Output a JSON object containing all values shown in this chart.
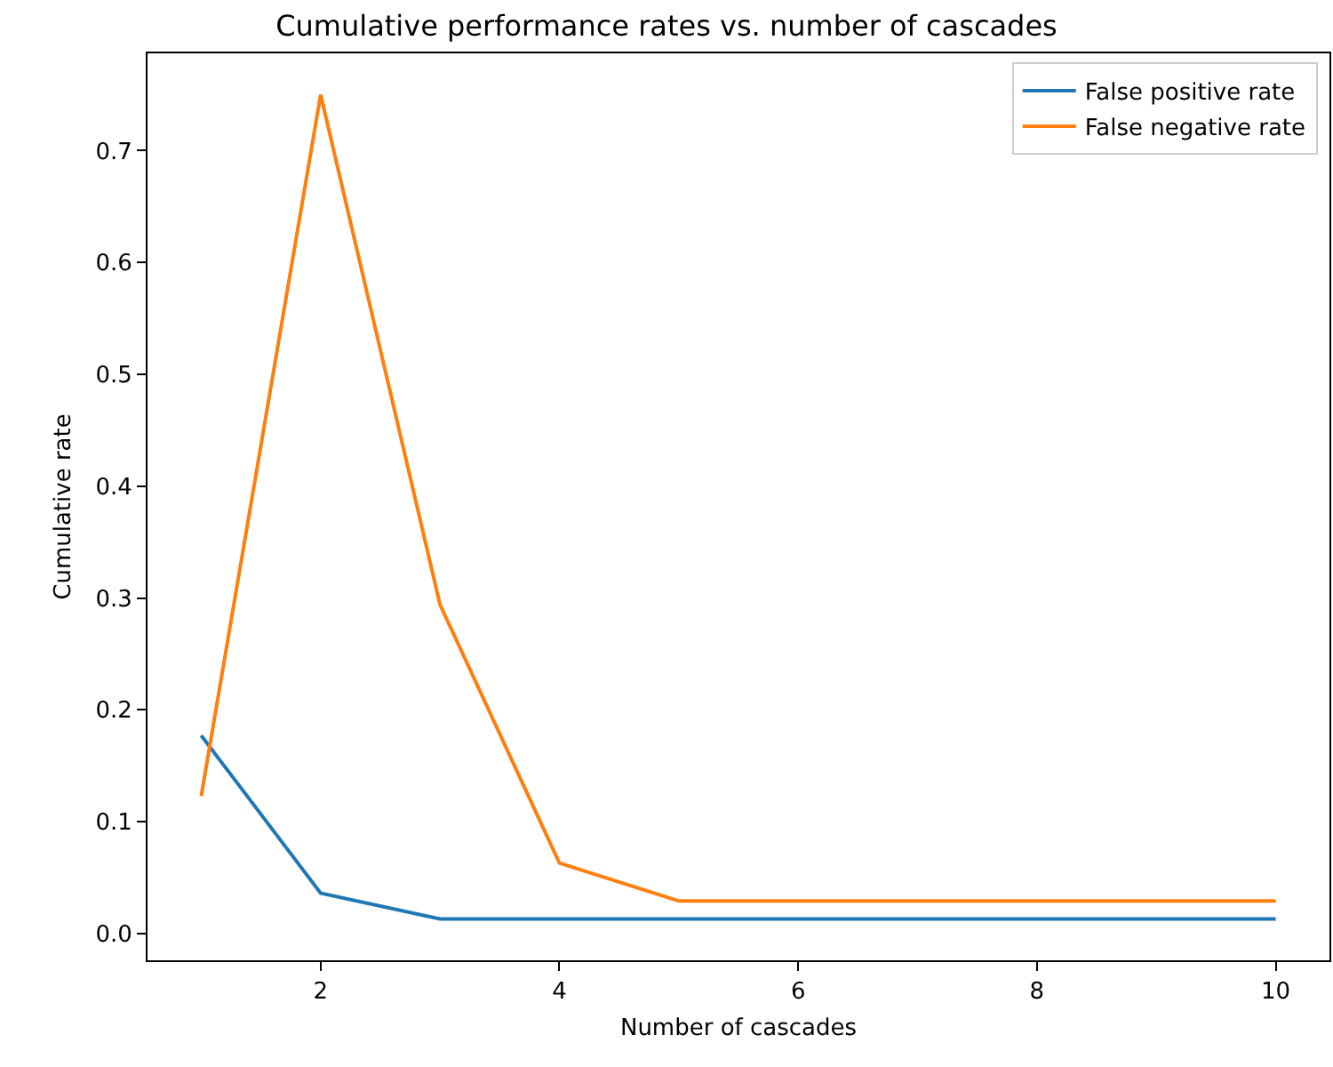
{
  "chart_data": {
    "type": "line",
    "title": "Cumulative performance rates vs. number of cascades",
    "xlabel": "Number of cascades",
    "ylabel": "Cumulative rate",
    "x": [
      1,
      2,
      3,
      4,
      5,
      6,
      7,
      8,
      9,
      10
    ],
    "series": [
      {
        "name": "False positive rate",
        "color": "#1f77b4",
        "values": [
          0.177,
          0.036,
          0.013,
          0.013,
          0.013,
          0.013,
          0.013,
          0.013,
          0.013,
          0.013
        ]
      },
      {
        "name": "False negative rate",
        "color": "#ff7f0e",
        "values": [
          0.123,
          0.75,
          0.294,
          0.063,
          0.029,
          0.029,
          0.029,
          0.029,
          0.029,
          0.029
        ]
      }
    ],
    "xlim": [
      0.55,
      10.45
    ],
    "xticks": [
      2,
      4,
      6,
      8,
      10
    ],
    "ylim": [
      -0.024,
      0.787
    ],
    "yticks": [
      {
        "value": 0,
        "label": "0.0"
      },
      0.1,
      0.2,
      0.3,
      0.4,
      0.5,
      0.6,
      0.7
    ],
    "grid": false,
    "legend": "top right",
    "marker": "none",
    "line_style": "solid"
  }
}
